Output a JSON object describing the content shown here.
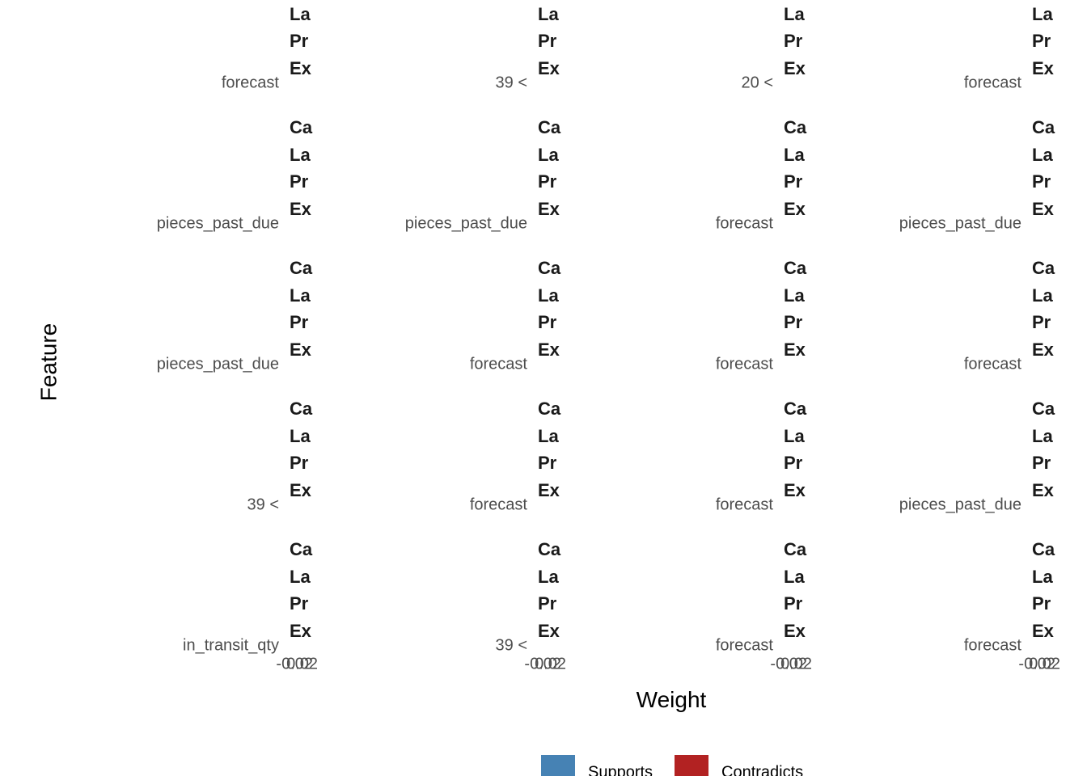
{
  "axis": {
    "y_label": "Feature",
    "x_label": "Weight",
    "x_ticks": [
      "-0.02",
      "0.02"
    ]
  },
  "strip": [
    "Ca",
    "La",
    "Pr",
    "Ex"
  ],
  "panels": [
    {
      "feature": "forecast"
    },
    {
      "feature": "39 <"
    },
    {
      "feature": "20 <"
    },
    {
      "feature": "forecast"
    },
    {
      "feature": "pieces_past_due"
    },
    {
      "feature": "pieces_past_due"
    },
    {
      "feature": "forecast"
    },
    {
      "feature": "pieces_past_due"
    },
    {
      "feature": "pieces_past_due"
    },
    {
      "feature": "forecast"
    },
    {
      "feature": "forecast"
    },
    {
      "feature": "forecast"
    },
    {
      "feature": "39 <"
    },
    {
      "feature": "forecast"
    },
    {
      "feature": "forecast"
    },
    {
      "feature": "pieces_past_due"
    },
    {
      "feature": "in_transit_qty"
    },
    {
      "feature": "39 <"
    },
    {
      "feature": "forecast"
    },
    {
      "feature": "forecast"
    }
  ],
  "legend": [
    {
      "label": "Supports",
      "color": "#4682b4"
    },
    {
      "label": "Contradicts",
      "color": "#b22222"
    }
  ]
}
